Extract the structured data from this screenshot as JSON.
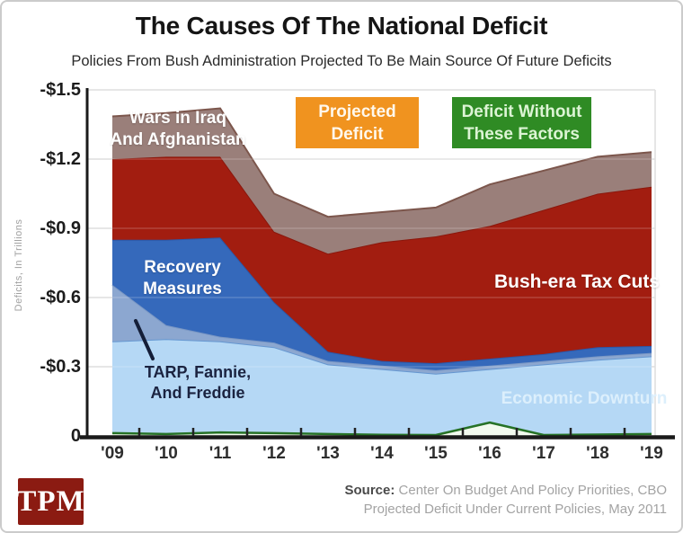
{
  "header": {
    "title": "The Causes Of The National Deficit",
    "subtitle": "Policies From Bush Administration Projected To Be Main Source Of Future Deficits"
  },
  "legend": {
    "projected_deficit": {
      "line1": "Projected",
      "line2": "Deficit",
      "bg": "#F0931F",
      "text_color": "#FFF8EC"
    },
    "deficit_without": {
      "line1": "Deficit Without",
      "line2": "These Factors",
      "bg": "#2F8B24",
      "text_color": "#DCF4D4"
    }
  },
  "area_labels": {
    "wars_line1": "Wars in Iraq",
    "wars_line2": "And Afghanistan",
    "recovery_line1": "Recovery",
    "recovery_line2": "Measures",
    "tarp_line1": "TARP, Fannie,",
    "tarp_line2": "And Freddie",
    "tax_cuts": "Bush-era Tax Cuts",
    "economic_downturn": "Economic Downturn"
  },
  "chart_data": {
    "type": "area",
    "stacked": true,
    "title": "The Causes Of The National Deficit",
    "ylabel": "Deficits, In Trillions",
    "values_unit": "trillions of dollars (shown as negative deficits on axis)",
    "x_labels": [
      "'09",
      "'10",
      "'11",
      "'12",
      "'13",
      "'14",
      "'15",
      "'16",
      "'17",
      "'18",
      "'19"
    ],
    "y_ticks": [
      {
        "label": "-$1.5",
        "value": 1.5
      },
      {
        "label": "-$1.2",
        "value": 1.2
      },
      {
        "label": "-$0.9",
        "value": 0.9
      },
      {
        "label": "-$0.6",
        "value": 0.6
      },
      {
        "label": "-$0.3",
        "value": 0.3
      },
      {
        "label": "0",
        "value": 0
      }
    ],
    "ylim": [
      0,
      1.5
    ],
    "grid": true,
    "series": [
      {
        "name": "Economic Downturn",
        "color": "#B5D8F5",
        "edge_color": "#6597D1",
        "values": [
          0.41,
          0.42,
          0.41,
          0.385,
          0.31,
          0.29,
          0.27,
          0.29,
          0.31,
          0.33,
          0.345
        ]
      },
      {
        "name": "TARP, Fannie, And Freddie",
        "color": "#8CA7D0",
        "edge_color": "#7A97C4",
        "values": [
          0.245,
          0.06,
          0.02,
          0.02,
          0.015,
          0.015,
          0.015,
          0.015,
          0.015,
          0.015,
          0.015
        ]
      },
      {
        "name": "Recovery Measures",
        "color": "#3569BB",
        "edge_color": "#2C57A8",
        "values": [
          0.195,
          0.37,
          0.43,
          0.175,
          0.04,
          0.02,
          0.03,
          0.03,
          0.03,
          0.04,
          0.03
        ]
      },
      {
        "name": "Bush-era Tax Cuts",
        "color": "#A21D10",
        "edge_color": "#8A170C",
        "values": [
          0.35,
          0.36,
          0.35,
          0.305,
          0.425,
          0.515,
          0.55,
          0.575,
          0.625,
          0.665,
          0.69
        ]
      },
      {
        "name": "Wars in Iraq And Afghanistan",
        "color": "#9A7F7A",
        "edge_color": "#7C564C",
        "values": [
          0.185,
          0.19,
          0.21,
          0.165,
          0.16,
          0.13,
          0.125,
          0.18,
          0.17,
          0.16,
          0.15
        ]
      }
    ],
    "baseline_series": {
      "name": "Deficit Without These Factors",
      "line_color": "#267226",
      "fill_color": "#F2FAEE",
      "values": [
        0.012,
        0.008,
        0.015,
        0.012,
        0.008,
        0.005,
        0.004,
        0.058,
        0.004,
        0.006,
        0.008
      ]
    },
    "projected_deficit_totals": [
      1.385,
      1.4,
      1.42,
      1.05,
      0.95,
      0.97,
      0.99,
      1.09,
      1.15,
      1.21,
      1.23
    ]
  },
  "footer": {
    "logo_text": "TPM",
    "logo_bg": "#8B1B12",
    "source_label": "Source:",
    "source_line1": "Center On Budget And Policy Priorities, CBO",
    "source_line2": "Projected Deficit Under Current Policies, May 2011"
  }
}
